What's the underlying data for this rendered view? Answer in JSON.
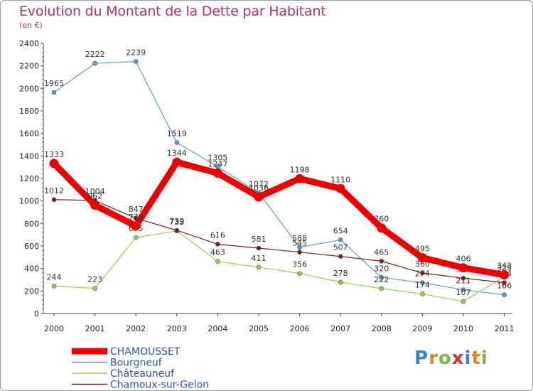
{
  "title": "Evolution du Montant de la Dette par Habitant",
  "subtitle": "(en €)",
  "logo": {
    "letters": [
      "P",
      "r",
      "o",
      "x",
      "i",
      "t",
      "i"
    ],
    "colors": [
      "#2f86c9",
      "#e8821e",
      "#7ab648",
      "#d6342f",
      "#2f86c9",
      "#e8821e",
      "#7ab648"
    ]
  },
  "chart_data": {
    "type": "line",
    "x": [
      "2000",
      "2001",
      "2002",
      "2003",
      "2004",
      "2005",
      "2006",
      "2007",
      "2008",
      "2009",
      "2010",
      "2011"
    ],
    "ylim": [
      0,
      2400
    ],
    "yticks": [
      "0",
      "200",
      "400",
      "600",
      "800",
      "1000",
      "1200",
      "1400",
      "1600",
      "1800",
      "2000",
      "2200",
      "2400"
    ],
    "grid": false,
    "legend_position": "bottom-left",
    "series": [
      {
        "name": "Bourgneuf",
        "color": "#5b9bd5",
        "values": [
          1965,
          2222,
          2239,
          1519,
          1305,
          1072,
          588,
          654,
          320,
          274,
          211,
          166
        ],
        "labels": [
          "1965",
          "2222",
          "2239",
          "1519",
          "1305",
          "1072",
          "588",
          "654",
          "320",
          "274",
          "211",
          "166"
        ]
      },
      {
        "name": "Châteauneuf",
        "color": "#8fd14f",
        "values": [
          244,
          223,
          675,
          733,
          463,
          411,
          356,
          278,
          222,
          174,
          107,
          325
        ],
        "labels": [
          "244",
          "223",
          "675",
          "733",
          "463",
          "411",
          "356",
          "278",
          "222",
          "174",
          "107",
          "325"
        ]
      },
      {
        "name": "Chamoux-sur-Gelon",
        "color": "#7a1e1e",
        "values": [
          1012,
          1004,
          847,
          739,
          616,
          581,
          545,
          507,
          465,
          360,
          314,
          274
        ],
        "labels": [
          "1012",
          "1004",
          "847",
          "739",
          "616",
          "581",
          "545",
          "507",
          "465",
          "360",
          "314",
          "274"
        ]
      },
      {
        "name": "CHAMOUSSET",
        "color": "#ee0000",
        "values": [
          1333,
          962,
          778,
          1344,
          1247,
          1036,
          1198,
          1110,
          760,
          495,
          406,
          343
        ],
        "labels": [
          "1333",
          "962",
          "778",
          "1344",
          "1247",
          "1036",
          "1198",
          "1110",
          "760",
          "495",
          "406",
          "343"
        ]
      }
    ],
    "legend": [
      {
        "name": "CHAMOUSSET",
        "color": "#ee0000"
      },
      {
        "name": "Bourgneuf",
        "color": "#5b9bd5"
      },
      {
        "name": "Châteauneuf",
        "color": "#8fd14f"
      },
      {
        "name": "Chamoux-sur-Gelon",
        "color": "#7a1e1e"
      }
    ]
  }
}
